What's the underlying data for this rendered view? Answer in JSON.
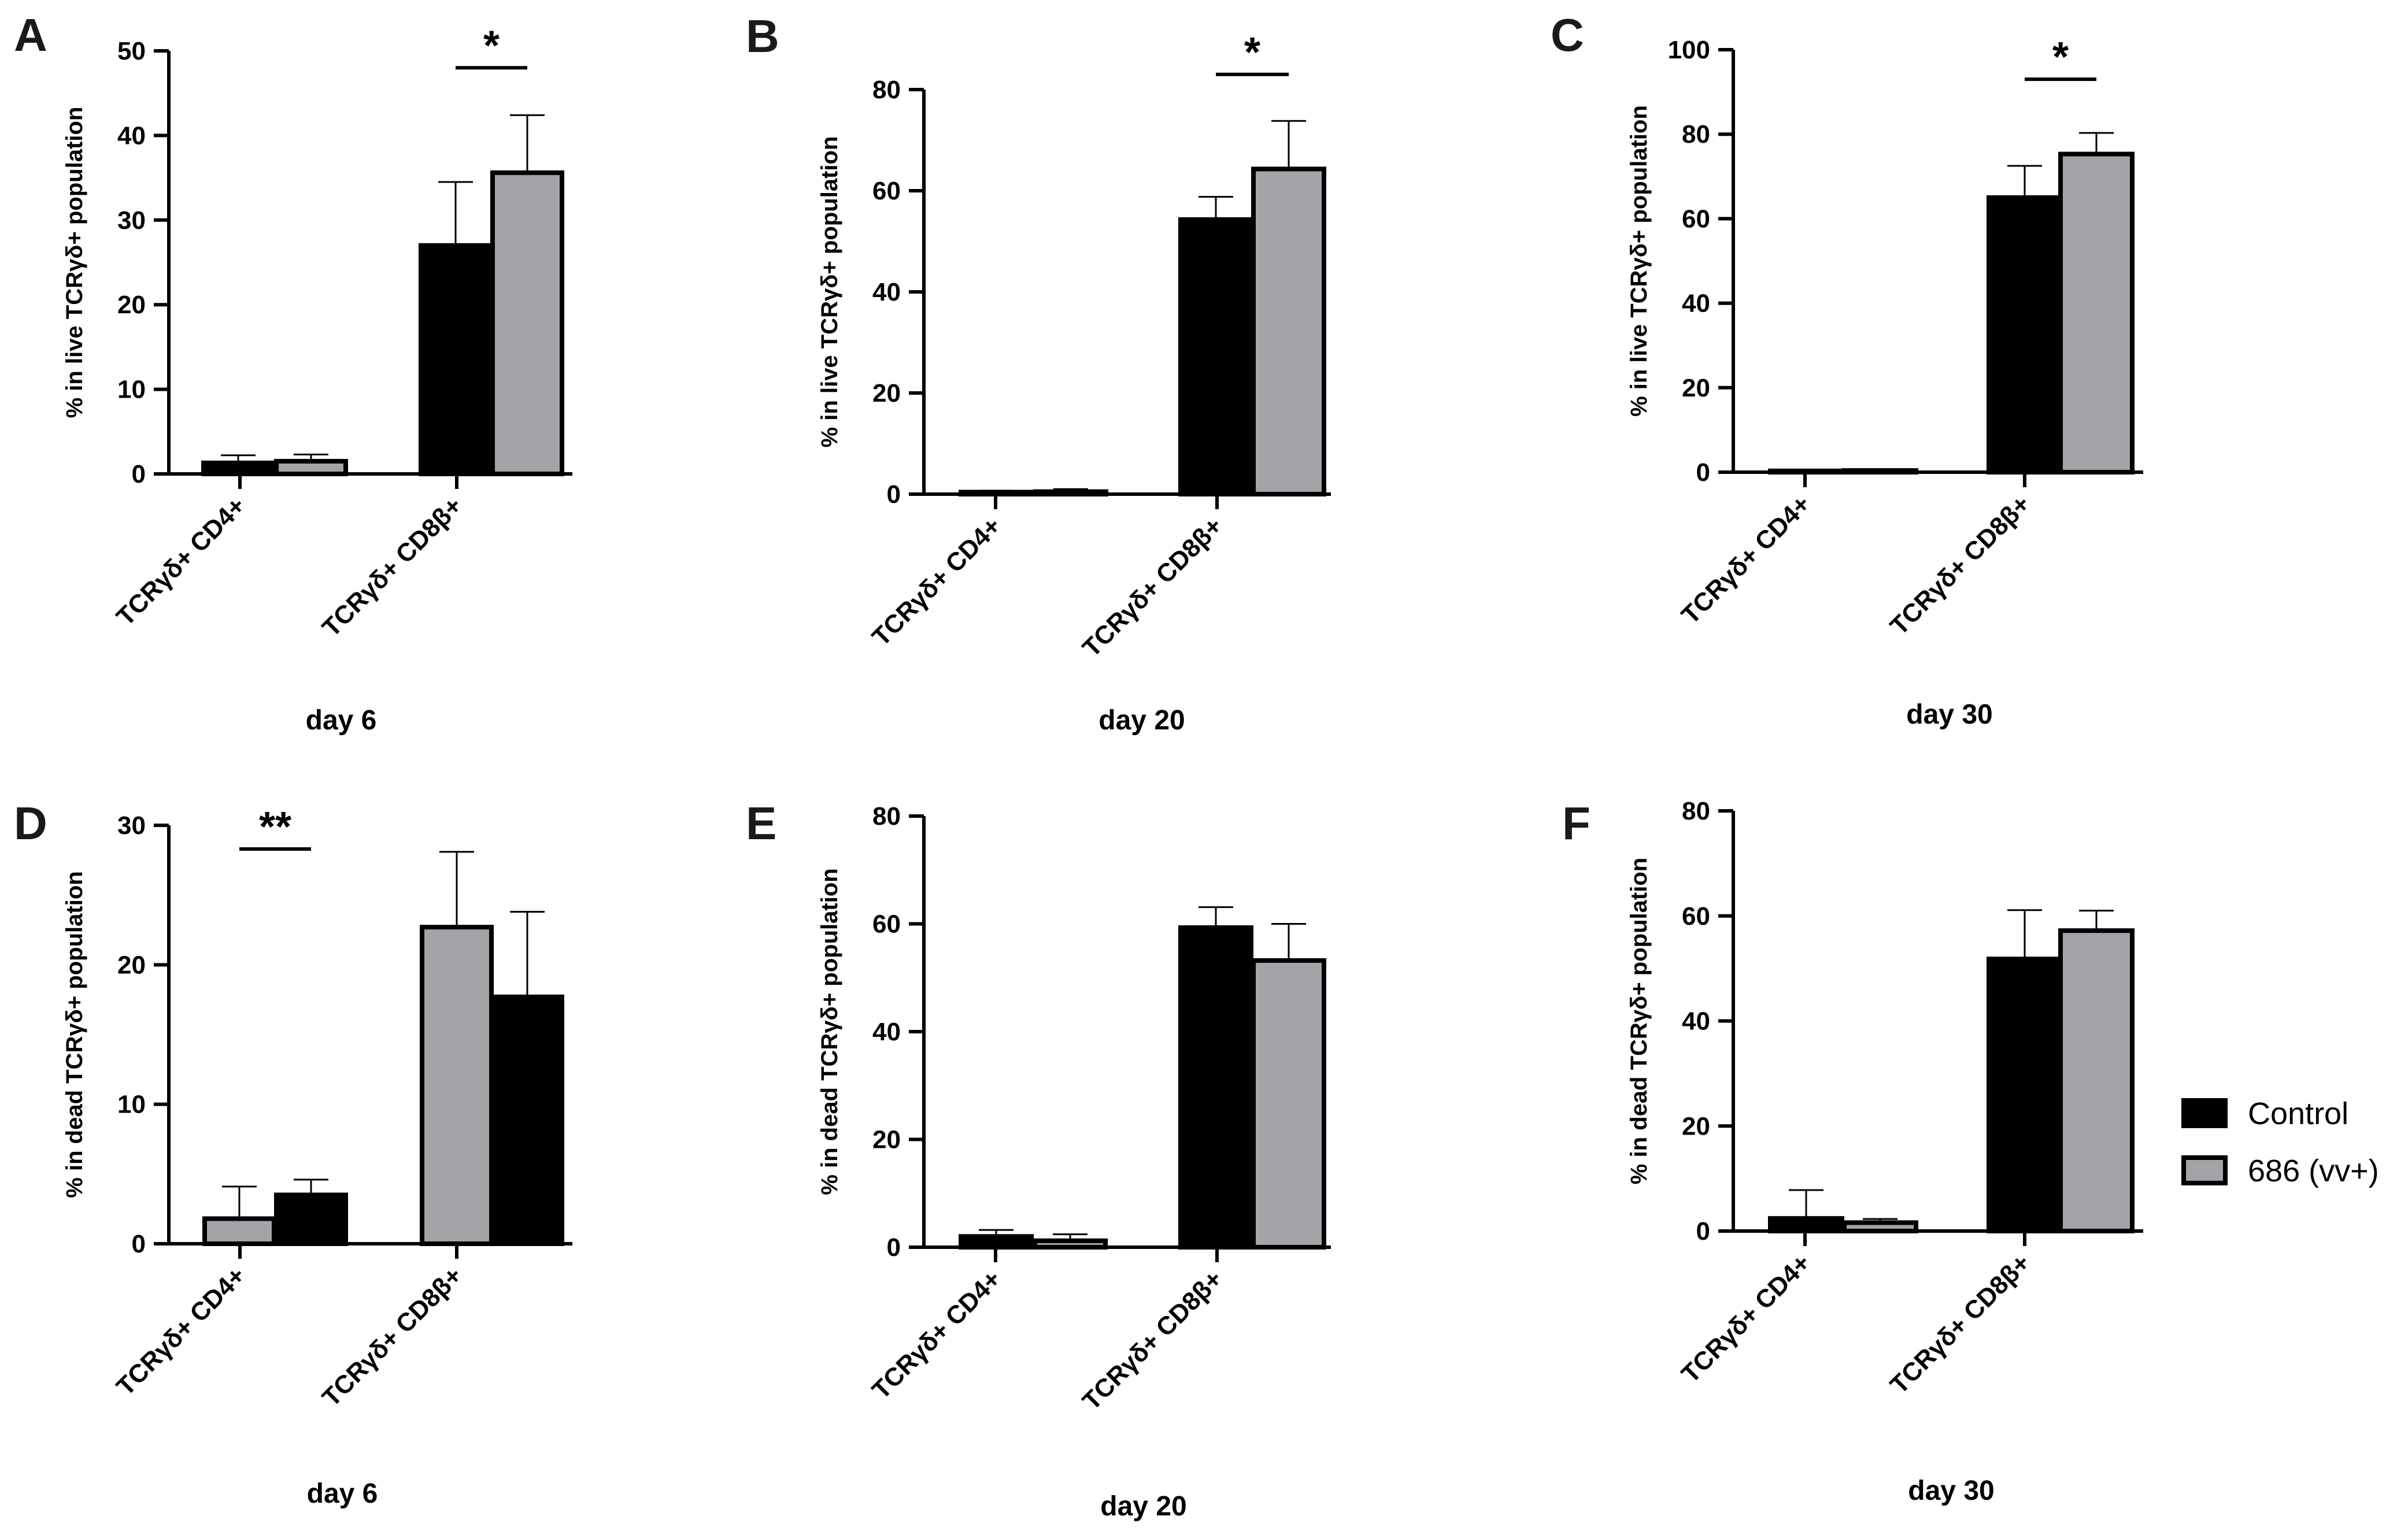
{
  "legend": {
    "items": [
      {
        "label": "Control",
        "color": "#000000"
      },
      {
        "label": "686 (vv+)",
        "color": "#a3a3a8"
      }
    ]
  },
  "chart_data": [
    {
      "panel": "A",
      "type": "bar",
      "title": "",
      "ylabel": "% in live TCRγδ+ population",
      "xlabel": "day 6",
      "categories": [
        "TCRγδ+ CD4+",
        "TCRγδ+ CD8β+"
      ],
      "ylim": [
        0,
        50
      ],
      "yticks": [
        0,
        10,
        20,
        30,
        40,
        50
      ],
      "ytick_labels": [
        "0",
        "10",
        "20",
        "30",
        "40",
        "50"
      ],
      "series": [
        {
          "name": "Control",
          "fill": "dark",
          "values": [
            1.3,
            27.0
          ],
          "errors": [
            0.9,
            7.5
          ]
        },
        {
          "name": "686 (vv+)",
          "fill": "gray",
          "values": [
            1.5,
            35.6
          ],
          "errors": [
            0.8,
            6.8
          ]
        }
      ],
      "significance": [
        {
          "category_index": 1,
          "label": "*",
          "y": 48
        }
      ]
    },
    {
      "panel": "B",
      "type": "bar",
      "title": "",
      "ylabel": "% in live TCRγδ+ population",
      "xlabel": "day 20",
      "categories": [
        "TCRγδ+ CD4+",
        "TCRγδ+ CD8β+"
      ],
      "ylim": [
        0,
        80
      ],
      "yticks": [
        0,
        20,
        40,
        60,
        80
      ],
      "ytick_labels": [
        "0",
        "20",
        "40",
        "60",
        "80"
      ],
      "series": [
        {
          "name": "Control",
          "fill": "dark",
          "values": [
            0.4,
            54.3
          ],
          "errors": [
            0.3,
            4.5
          ]
        },
        {
          "name": "686 (vv+)",
          "fill": "gray",
          "values": [
            0.5,
            64.3
          ],
          "errors": [
            0.5,
            9.5
          ]
        }
      ],
      "significance": [
        {
          "category_index": 1,
          "label": "*",
          "y": 83
        }
      ]
    },
    {
      "panel": "C",
      "type": "bar",
      "title": "",
      "ylabel": "% in live TCRγδ+ population",
      "xlabel": "day 30",
      "categories": [
        "TCRγδ+ CD4+",
        "TCRγδ+ CD8β+"
      ],
      "ylim": [
        0,
        100
      ],
      "yticks": [
        0,
        20,
        40,
        60,
        80,
        100
      ],
      "ytick_labels": [
        "0",
        "20",
        "40",
        "60",
        "80",
        "100"
      ],
      "series": [
        {
          "name": "Control",
          "fill": "dark",
          "values": [
            0.3,
            65.0
          ],
          "errors": [
            0.2,
            7.5
          ]
        },
        {
          "name": "686 (vv+)",
          "fill": "gray",
          "values": [
            0.4,
            75.3
          ],
          "errors": [
            0.3,
            5.0
          ]
        }
      ],
      "significance": [
        {
          "category_index": 1,
          "label": "*",
          "y": 93
        }
      ]
    },
    {
      "panel": "D",
      "type": "bar",
      "title": "",
      "ylabel": "% in dead TCRγδ+ population",
      "xlabel": "day 6",
      "categories": [
        "TCRγδ+ CD4+",
        "TCRγδ+ CD8β+"
      ],
      "ylim": [
        0,
        30
      ],
      "yticks": [
        0,
        10,
        20,
        30
      ],
      "ytick_labels": [
        "0",
        "10",
        "20",
        "30"
      ],
      "series": [
        {
          "name": "686 (vv+)",
          "fill": "gray",
          "values": [
            1.8,
            22.7
          ],
          "errors": [
            2.3,
            5.4
          ]
        },
        {
          "name": "Control",
          "fill": "dark",
          "values": [
            3.5,
            17.7
          ],
          "errors": [
            1.1,
            6.1
          ]
        }
      ],
      "significance": [
        {
          "category_index": 0,
          "label": "**",
          "y": 28.3
        }
      ]
    },
    {
      "panel": "E",
      "type": "bar",
      "title": "",
      "ylabel": "% in dead TCRγδ+ population",
      "xlabel": "day 20",
      "categories": [
        "TCRγδ+ CD4+",
        "TCRγδ+ CD8β+"
      ],
      "ylim": [
        0,
        80
      ],
      "yticks": [
        0,
        20,
        40,
        60,
        80
      ],
      "ytick_labels": [
        "0",
        "20",
        "40",
        "60",
        "80"
      ],
      "series": [
        {
          "name": "Control",
          "fill": "dark",
          "values": [
            2.0,
            59.3
          ],
          "errors": [
            1.2,
            3.8
          ]
        },
        {
          "name": "686 (vv+)",
          "fill": "gray",
          "values": [
            1.2,
            53.2
          ],
          "errors": [
            1.2,
            6.8
          ]
        }
      ],
      "significance": []
    },
    {
      "panel": "F",
      "type": "bar",
      "title": "",
      "ylabel": "% in dead TCRγδ+ population",
      "xlabel": "day 30",
      "categories": [
        "TCRγδ+ CD4+",
        "TCRγδ+ CD8β+"
      ],
      "ylim": [
        0,
        80
      ],
      "yticks": [
        0,
        20,
        40,
        60,
        80
      ],
      "ytick_labels": [
        "0",
        "20",
        "40",
        "60",
        "80"
      ],
      "series": [
        {
          "name": "Control",
          "fill": "dark",
          "values": [
            2.4,
            51.8
          ],
          "errors": [
            5.4,
            9.3
          ]
        },
        {
          "name": "686 (vv+)",
          "fill": "gray",
          "values": [
            1.6,
            57.2
          ],
          "errors": [
            0.7,
            3.8
          ]
        }
      ],
      "significance": []
    }
  ]
}
